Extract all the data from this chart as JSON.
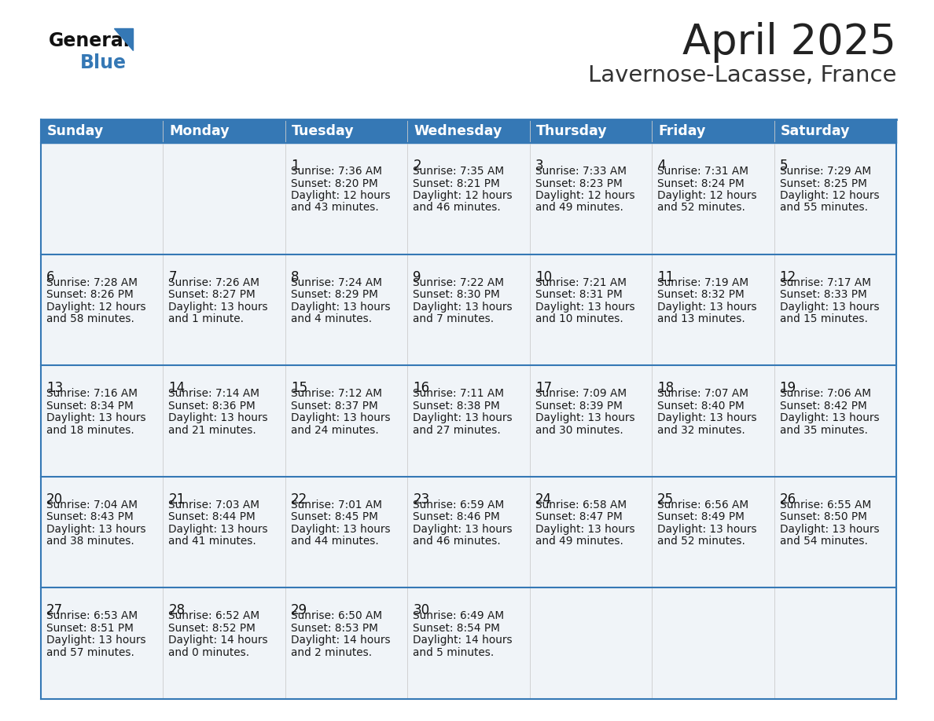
{
  "title": "April 2025",
  "subtitle": "Lavernose-Lacasse, France",
  "header_color": "#3578b5",
  "header_text_color": "#ffffff",
  "cell_bg_color": "#f0f4f8",
  "border_color": "#3578b5",
  "text_color": "#1a1a1a",
  "days_of_week": [
    "Sunday",
    "Monday",
    "Tuesday",
    "Wednesday",
    "Thursday",
    "Friday",
    "Saturday"
  ],
  "calendar": [
    [
      {
        "day": "",
        "sunrise": "",
        "sunset": "",
        "daylight": ""
      },
      {
        "day": "",
        "sunrise": "",
        "sunset": "",
        "daylight": ""
      },
      {
        "day": "1",
        "sunrise": "7:36 AM",
        "sunset": "8:20 PM",
        "daylight": "12 hours\nand 43 minutes."
      },
      {
        "day": "2",
        "sunrise": "7:35 AM",
        "sunset": "8:21 PM",
        "daylight": "12 hours\nand 46 minutes."
      },
      {
        "day": "3",
        "sunrise": "7:33 AM",
        "sunset": "8:23 PM",
        "daylight": "12 hours\nand 49 minutes."
      },
      {
        "day": "4",
        "sunrise": "7:31 AM",
        "sunset": "8:24 PM",
        "daylight": "12 hours\nand 52 minutes."
      },
      {
        "day": "5",
        "sunrise": "7:29 AM",
        "sunset": "8:25 PM",
        "daylight": "12 hours\nand 55 minutes."
      }
    ],
    [
      {
        "day": "6",
        "sunrise": "7:28 AM",
        "sunset": "8:26 PM",
        "daylight": "12 hours\nand 58 minutes."
      },
      {
        "day": "7",
        "sunrise": "7:26 AM",
        "sunset": "8:27 PM",
        "daylight": "13 hours\nand 1 minute."
      },
      {
        "day": "8",
        "sunrise": "7:24 AM",
        "sunset": "8:29 PM",
        "daylight": "13 hours\nand 4 minutes."
      },
      {
        "day": "9",
        "sunrise": "7:22 AM",
        "sunset": "8:30 PM",
        "daylight": "13 hours\nand 7 minutes."
      },
      {
        "day": "10",
        "sunrise": "7:21 AM",
        "sunset": "8:31 PM",
        "daylight": "13 hours\nand 10 minutes."
      },
      {
        "day": "11",
        "sunrise": "7:19 AM",
        "sunset": "8:32 PM",
        "daylight": "13 hours\nand 13 minutes."
      },
      {
        "day": "12",
        "sunrise": "7:17 AM",
        "sunset": "8:33 PM",
        "daylight": "13 hours\nand 15 minutes."
      }
    ],
    [
      {
        "day": "13",
        "sunrise": "7:16 AM",
        "sunset": "8:34 PM",
        "daylight": "13 hours\nand 18 minutes."
      },
      {
        "day": "14",
        "sunrise": "7:14 AM",
        "sunset": "8:36 PM",
        "daylight": "13 hours\nand 21 minutes."
      },
      {
        "day": "15",
        "sunrise": "7:12 AM",
        "sunset": "8:37 PM",
        "daylight": "13 hours\nand 24 minutes."
      },
      {
        "day": "16",
        "sunrise": "7:11 AM",
        "sunset": "8:38 PM",
        "daylight": "13 hours\nand 27 minutes."
      },
      {
        "day": "17",
        "sunrise": "7:09 AM",
        "sunset": "8:39 PM",
        "daylight": "13 hours\nand 30 minutes."
      },
      {
        "day": "18",
        "sunrise": "7:07 AM",
        "sunset": "8:40 PM",
        "daylight": "13 hours\nand 32 minutes."
      },
      {
        "day": "19",
        "sunrise": "7:06 AM",
        "sunset": "8:42 PM",
        "daylight": "13 hours\nand 35 minutes."
      }
    ],
    [
      {
        "day": "20",
        "sunrise": "7:04 AM",
        "sunset": "8:43 PM",
        "daylight": "13 hours\nand 38 minutes."
      },
      {
        "day": "21",
        "sunrise": "7:03 AM",
        "sunset": "8:44 PM",
        "daylight": "13 hours\nand 41 minutes."
      },
      {
        "day": "22",
        "sunrise": "7:01 AM",
        "sunset": "8:45 PM",
        "daylight": "13 hours\nand 44 minutes."
      },
      {
        "day": "23",
        "sunrise": "6:59 AM",
        "sunset": "8:46 PM",
        "daylight": "13 hours\nand 46 minutes."
      },
      {
        "day": "24",
        "sunrise": "6:58 AM",
        "sunset": "8:47 PM",
        "daylight": "13 hours\nand 49 minutes."
      },
      {
        "day": "25",
        "sunrise": "6:56 AM",
        "sunset": "8:49 PM",
        "daylight": "13 hours\nand 52 minutes."
      },
      {
        "day": "26",
        "sunrise": "6:55 AM",
        "sunset": "8:50 PM",
        "daylight": "13 hours\nand 54 minutes."
      }
    ],
    [
      {
        "day": "27",
        "sunrise": "6:53 AM",
        "sunset": "8:51 PM",
        "daylight": "13 hours\nand 57 minutes."
      },
      {
        "day": "28",
        "sunrise": "6:52 AM",
        "sunset": "8:52 PM",
        "daylight": "14 hours\nand 0 minutes."
      },
      {
        "day": "29",
        "sunrise": "6:50 AM",
        "sunset": "8:53 PM",
        "daylight": "14 hours\nand 2 minutes."
      },
      {
        "day": "30",
        "sunrise": "6:49 AM",
        "sunset": "8:54 PM",
        "daylight": "14 hours\nand 5 minutes."
      },
      {
        "day": "",
        "sunrise": "",
        "sunset": "",
        "daylight": ""
      },
      {
        "day": "",
        "sunrise": "",
        "sunset": "",
        "daylight": ""
      },
      {
        "day": "",
        "sunrise": "",
        "sunset": "",
        "daylight": ""
      }
    ]
  ]
}
